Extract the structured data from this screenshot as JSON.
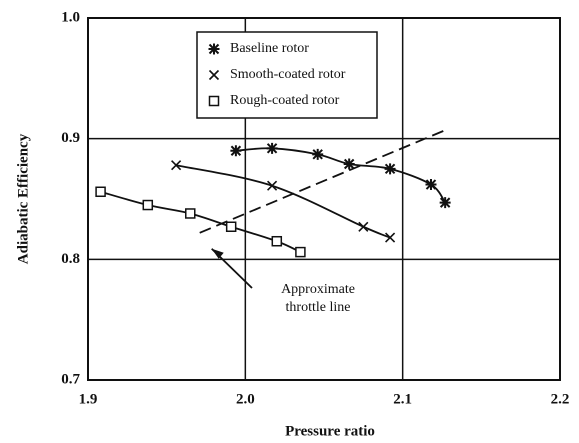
{
  "chart_data": {
    "type": "line",
    "x_label": "Pressure ratio",
    "y_label": "Adiabatic Efficiency",
    "xlim": [
      1.9,
      2.2
    ],
    "ylim": [
      0.7,
      1.0
    ],
    "xticks": [
      1.9,
      {
        "value": 2.0,
        "label": "2.0"
      },
      2.1,
      2.2
    ],
    "yticks": [
      {
        "value": 1.0,
        "label": "1.0"
      },
      0.9,
      0.8,
      0.7
    ],
    "grid": true,
    "legend": "upper center",
    "series": [
      {
        "name": "Baseline rotor",
        "color": "#111111",
        "marker": "asterisk",
        "x": [
          1.994,
          2.017,
          2.046,
          2.066,
          2.092,
          2.118,
          2.127
        ],
        "values": [
          0.89,
          0.892,
          0.887,
          0.879,
          0.875,
          0.862,
          0.847
        ]
      },
      {
        "name": "Smooth-coated rotor",
        "color": "#111111",
        "marker": "x",
        "x": [
          1.956,
          2.017,
          2.075,
          2.092
        ],
        "values": [
          0.878,
          0.861,
          0.827,
          0.818
        ]
      },
      {
        "name": "Rough-coated rotor",
        "color": "#111111",
        "marker": "square",
        "x": [
          1.908,
          1.938,
          1.965,
          1.991,
          2.02,
          2.035
        ],
        "values": [
          0.856,
          0.845,
          0.838,
          0.827,
          0.815,
          0.806
        ]
      }
    ],
    "throttle_line": {
      "lines": [
        "Approximate",
        "throttle line"
      ],
      "x": [
        1.971,
        2.127
      ],
      "values": [
        0.822,
        0.907
      ]
    }
  }
}
